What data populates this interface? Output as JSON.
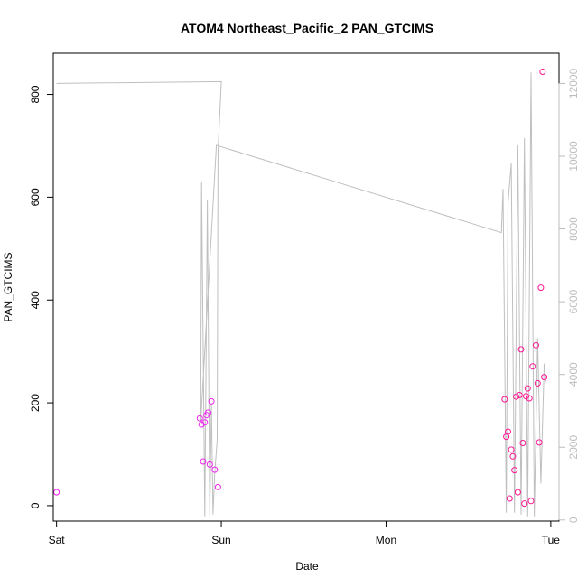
{
  "chart_data": {
    "type": "scatter",
    "title": "ATOM4 Northeast_Pacific_2 PAN_GTCIMS",
    "xlabel": "Date",
    "ylabel": "PAN_GTCIMS",
    "x_ticks": [
      "Sat",
      "Sun",
      "Mon",
      "Tue"
    ],
    "xlim": [
      -0.02,
      3.05
    ],
    "ylim": [
      -30,
      880
    ],
    "y_ticks": [
      0,
      200,
      400,
      600,
      800
    ],
    "y2lim": [
      -30,
      12830
    ],
    "y2_ticks": [
      0,
      2000,
      4000,
      6000,
      8000,
      10000,
      12000
    ],
    "grid": false,
    "colors": {
      "points": "#ff1493",
      "points_early": "#ee22ee",
      "line": "#bfbfbf",
      "right_axis": "#bdbdbd"
    },
    "points": [
      {
        "x": 0.0,
        "y": 26
      },
      {
        "x": 0.87,
        "y": 170
      },
      {
        "x": 0.88,
        "y": 158
      },
      {
        "x": 0.89,
        "y": 86
      },
      {
        "x": 0.9,
        "y": 162
      },
      {
        "x": 0.91,
        "y": 176
      },
      {
        "x": 0.92,
        "y": 181
      },
      {
        "x": 0.93,
        "y": 80
      },
      {
        "x": 0.94,
        "y": 203
      },
      {
        "x": 0.96,
        "y": 70
      },
      {
        "x": 0.98,
        "y": 36
      },
      {
        "x": 2.72,
        "y": 207
      },
      {
        "x": 2.73,
        "y": 134
      },
      {
        "x": 2.74,
        "y": 144
      },
      {
        "x": 2.75,
        "y": 14
      },
      {
        "x": 2.76,
        "y": 109
      },
      {
        "x": 2.77,
        "y": 96
      },
      {
        "x": 2.78,
        "y": 69
      },
      {
        "x": 2.79,
        "y": 212
      },
      {
        "x": 2.8,
        "y": 26
      },
      {
        "x": 2.81,
        "y": 215
      },
      {
        "x": 2.82,
        "y": 304
      },
      {
        "x": 2.83,
        "y": 122
      },
      {
        "x": 2.84,
        "y": 4
      },
      {
        "x": 2.85,
        "y": 213
      },
      {
        "x": 2.86,
        "y": 228
      },
      {
        "x": 2.87,
        "y": 209
      },
      {
        "x": 2.88,
        "y": 9
      },
      {
        "x": 2.89,
        "y": 271
      },
      {
        "x": 2.91,
        "y": 312
      },
      {
        "x": 2.92,
        "y": 238
      },
      {
        "x": 2.93,
        "y": 123
      },
      {
        "x": 2.94,
        "y": 424
      },
      {
        "x": 2.95,
        "y": 844
      },
      {
        "x": 2.96,
        "y": 250
      }
    ],
    "line": [
      {
        "x": 0.0,
        "y2": 12000
      },
      {
        "x": 1.0,
        "y2": 12050
      },
      {
        "x": 0.985,
        "y2": 10600
      },
      {
        "x": 0.98,
        "y2": 10100
      },
      {
        "x": 0.975,
        "y2": 2200
      },
      {
        "x": 0.96,
        "y2": 1300
      },
      {
        "x": 0.95,
        "y2": 150
      },
      {
        "x": 0.94,
        "y2": 3200
      },
      {
        "x": 0.93,
        "y2": 100
      },
      {
        "x": 0.915,
        "y2": 8800
      },
      {
        "x": 0.9,
        "y2": 100
      },
      {
        "x": 0.88,
        "y2": 9300
      },
      {
        "x": 0.875,
        "y2": 2700
      },
      {
        "x": 0.97,
        "y2": 10300
      },
      {
        "x": 2.7,
        "y2": 7900
      },
      {
        "x": 2.71,
        "y2": 9100
      },
      {
        "x": 2.73,
        "y2": 200
      },
      {
        "x": 2.74,
        "y2": 8700
      },
      {
        "x": 2.76,
        "y2": 9800
      },
      {
        "x": 2.78,
        "y2": 200
      },
      {
        "x": 2.8,
        "y2": 10300
      },
      {
        "x": 2.82,
        "y2": 150
      },
      {
        "x": 2.84,
        "y2": 10500
      },
      {
        "x": 2.86,
        "y2": 100
      },
      {
        "x": 2.88,
        "y2": 12300
      },
      {
        "x": 2.9,
        "y2": 100
      },
      {
        "x": 2.92,
        "y2": 5000
      },
      {
        "x": 2.94,
        "y2": 1000
      },
      {
        "x": 2.96,
        "y2": 4300
      },
      {
        "x": 2.97,
        "y2": 3800
      }
    ]
  }
}
